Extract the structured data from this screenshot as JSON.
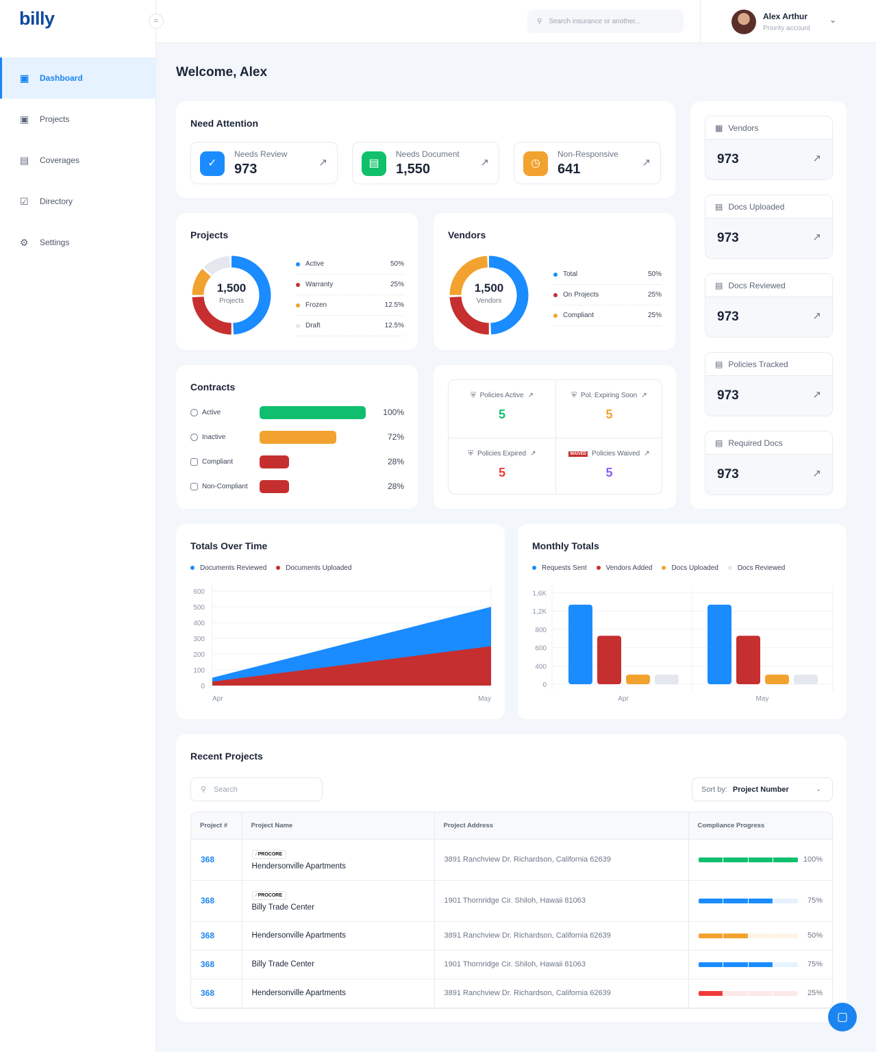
{
  "sidebar": {
    "logo": "billy",
    "items": [
      {
        "label": "Dashboard",
        "icon": "folder-icon"
      },
      {
        "label": "Projects",
        "icon": "folder-icon"
      },
      {
        "label": "Coverages",
        "icon": "document-icon"
      },
      {
        "label": "Directory",
        "icon": "briefcase-check-icon"
      },
      {
        "label": "Settings",
        "icon": "gear-icon"
      }
    ]
  },
  "header": {
    "search_placeholder": "Search insurance or another...",
    "user_name": "Alex Arthur",
    "user_role": "Priority account"
  },
  "welcome": "Welcome, Alex",
  "attention": {
    "title": "Need Attention",
    "items": [
      {
        "label": "Needs Review",
        "value": "973",
        "color": "#1a8cff"
      },
      {
        "label": "Needs Document",
        "value": "1,550",
        "color": "#10c06a"
      },
      {
        "label": "Non-Responsive",
        "value": "641",
        "color": "#f2a22e"
      }
    ]
  },
  "right_stats": [
    {
      "label": "Vendors",
      "value": "973",
      "icon": "store-icon"
    },
    {
      "label": "Docs Uploaded",
      "value": "973",
      "icon": "document-icon"
    },
    {
      "label": "Docs Reviewed",
      "value": "973",
      "icon": "document-icon"
    },
    {
      "label": "Policies Tracked",
      "value": "973",
      "icon": "document-icon"
    },
    {
      "label": "Required Docs",
      "value": "973",
      "icon": "document-icon"
    }
  ],
  "projects": {
    "title": "Projects",
    "total": "1,500",
    "unit": "Projects",
    "legend": [
      {
        "label": "Active",
        "pct": "50%",
        "value": 50,
        "color": "#1a8cff"
      },
      {
        "label": "Warranty",
        "pct": "25%",
        "value": 25,
        "color": "#c62f2f"
      },
      {
        "label": "Frozen",
        "pct": "12.5%",
        "value": 12.5,
        "color": "#f2a22e"
      },
      {
        "label": "Draft",
        "pct": "12.5%",
        "value": 12.5,
        "color": "#e4e8ee"
      }
    ]
  },
  "vendors": {
    "title": "Vendors",
    "total": "1,500",
    "unit": "Vendors",
    "legend": [
      {
        "label": "Total",
        "pct": "50%",
        "value": 50,
        "color": "#1a8cff"
      },
      {
        "label": "On Projects",
        "pct": "25%",
        "value": 25,
        "color": "#c62f2f"
      },
      {
        "label": "Compliant",
        "pct": "25%",
        "value": 25,
        "color": "#f2a22e"
      }
    ]
  },
  "contracts": {
    "title": "Contracts",
    "rows": [
      {
        "label": "Active",
        "pct": "100%",
        "value": 100,
        "color": "#0fbf6f"
      },
      {
        "label": "Inactive",
        "pct": "72%",
        "value": 72,
        "color": "#f2a22e"
      },
      {
        "label": "Compliant",
        "pct": "28%",
        "value": 28,
        "color": "#c62f2f"
      },
      {
        "label": "Non-Compliant",
        "pct": "28%",
        "value": 28,
        "color": "#c62f2f"
      }
    ]
  },
  "policies": [
    {
      "label": "Policies Active",
      "value": "5",
      "color": "#10c06a"
    },
    {
      "label": "Pol. Expiring Soon",
      "value": "5",
      "color": "#f2a22e"
    },
    {
      "label": "Policies Expired",
      "value": "5",
      "color": "#f03a3a"
    },
    {
      "label": "Policies Waived",
      "value": "5",
      "color": "#8b5cf6",
      "badge": "WAIVED"
    }
  ],
  "chart_data": [
    {
      "type": "area",
      "title": "Totals Over Time",
      "categories": [
        "Apr",
        "May"
      ],
      "ylim": [
        0,
        600
      ],
      "yticks": [
        0,
        100,
        200,
        300,
        400,
        500,
        600
      ],
      "grid": true,
      "legend": "top-left",
      "series": [
        {
          "name": "Documents Reviewed",
          "values": [
            50,
            500
          ],
          "color": "#1a8cff"
        },
        {
          "name": "Documents Uploaded",
          "values": [
            25,
            250
          ],
          "color": "#c62f2f"
        }
      ]
    },
    {
      "type": "bar",
      "title": "Monthly Totals",
      "categories": [
        "Apr",
        "May"
      ],
      "ytick_labels": [
        "0",
        "400",
        "600",
        "800",
        "1,2K",
        "1,6K"
      ],
      "yticks": [
        0,
        400,
        600,
        800,
        1200,
        1600
      ],
      "grid": true,
      "legend": "top-left",
      "series": [
        {
          "name": "Requests Sent",
          "values": [
            1340,
            1340
          ],
          "color": "#1a8cff"
        },
        {
          "name": "Vendors Added",
          "values": [
            730,
            730
          ],
          "color": "#c62f2f"
        },
        {
          "name": "Docs Uploaded",
          "values": [
            210,
            210
          ],
          "color": "#f2a22e"
        },
        {
          "name": "Docs Reviewed",
          "values": [
            210,
            210
          ],
          "color": "#e4e8ee"
        }
      ]
    }
  ],
  "recent": {
    "title": "Recent Projects",
    "search_placeholder": "Search",
    "sort_label": "Sort by:",
    "sort_value": "Project Number",
    "columns": [
      "Project #",
      "Project Name",
      "Project Address",
      "Compliance Progress"
    ],
    "rows": [
      {
        "num": "368",
        "badge": "PROCORE",
        "name": "Hendersonville Apartments",
        "address": "3891 Ranchview Dr. Richardson, California 62639",
        "progress": "100%",
        "value": 100,
        "color": "#0fbf6f",
        "track": "#e3f7ec"
      },
      {
        "num": "368",
        "badge": "PROCORE",
        "name": "Billy Trade Center",
        "address": "1901 Thornridge Cir. Shiloh, Hawaii 81063",
        "progress": "75%",
        "value": 75,
        "color": "#1a8cff",
        "track": "#e6f2ff"
      },
      {
        "num": "368",
        "name": "Hendersonville Apartments",
        "address": "3891 Ranchview Dr. Richardson, California 62639",
        "progress": "50%",
        "value": 50,
        "color": "#f2a22e",
        "track": "#fdf3e6"
      },
      {
        "num": "368",
        "name": "Billy Trade Center",
        "address": "1901 Thornridge Cir. Shiloh, Hawaii 81063",
        "progress": "75%",
        "value": 75,
        "color": "#1a8cff",
        "track": "#e6f2ff"
      },
      {
        "num": "368",
        "name": "Hendersonville Apartments",
        "address": "3891 Ranchview Dr. Richardson, California 62639",
        "progress": "25%",
        "value": 25,
        "color": "#f03a3a",
        "track": "#fde8e8"
      }
    ]
  }
}
